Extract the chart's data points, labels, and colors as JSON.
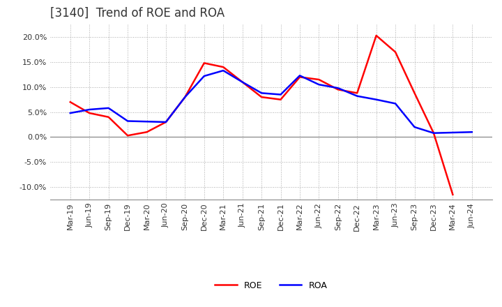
{
  "title": "[3140]  Trend of ROE and ROA",
  "x_labels": [
    "Mar-19",
    "Jun-19",
    "Sep-19",
    "Dec-19",
    "Mar-20",
    "Jun-20",
    "Sep-20",
    "Dec-20",
    "Mar-21",
    "Jun-21",
    "Sep-21",
    "Dec-21",
    "Mar-22",
    "Jun-22",
    "Sep-22",
    "Dec-22",
    "Mar-23",
    "Jun-23",
    "Sep-23",
    "Dec-23",
    "Mar-24",
    "Jun-24"
  ],
  "ROE": [
    7.0,
    4.8,
    4.0,
    0.3,
    1.0,
    3.0,
    8.0,
    14.8,
    14.0,
    11.0,
    8.0,
    7.5,
    12.0,
    11.5,
    9.5,
    8.8,
    20.3,
    17.0,
    8.8,
    0.8,
    -11.5,
    null
  ],
  "ROA": [
    4.8,
    5.5,
    5.8,
    3.2,
    3.1,
    3.0,
    8.0,
    12.2,
    13.3,
    11.0,
    8.8,
    8.5,
    12.3,
    10.5,
    9.8,
    8.2,
    7.5,
    6.7,
    2.0,
    0.8,
    0.9,
    1.0
  ],
  "roe_color": "#FF0000",
  "roa_color": "#0000FF",
  "bg_color": "#FFFFFF",
  "plot_bg_color": "#FFFFFF",
  "grid_color": "#AAAAAA",
  "ylim": [
    -12.5,
    22.5
  ],
  "yticks": [
    -10.0,
    -5.0,
    0.0,
    5.0,
    10.0,
    15.0,
    20.0
  ],
  "line_width": 1.8,
  "title_fontsize": 12,
  "legend_fontsize": 9,
  "tick_fontsize": 8,
  "title_color": "#333333"
}
